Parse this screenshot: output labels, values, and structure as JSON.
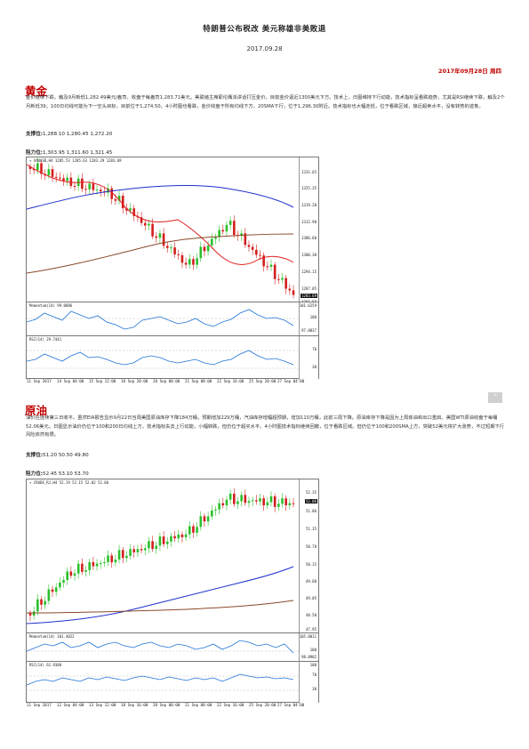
{
  "header": {
    "title": "特朗普公布税改 美元称雄非美败退",
    "date": "2017.09.28",
    "dateline": "2017年09月28日 周四"
  },
  "gold": {
    "heading": "黄金",
    "text": "金价继续下跌，触及9月新低1,282.49美元/盎司，收盘于每盎司1,283.71美元。美联储主席耶伦鹰派讲话打压金价，目前金价逼近1300美元下方。技术上，日图维持下行动能，技术指标呈看跌趋势，尤其是RSI继续下跌，触及2个月新低39；100日均线可能为下一空头目标，目前位于1,274.50。4小时图也看跌，金价收盘于所有均线下方，20SMA下行，位于1,296.30附近。技术指标也大幅走低，位于看跌区域，接近超卖水平，没有转势的迹象。",
    "support_label": "支撑位:",
    "support_values": "1,288.10 1,280.45 1,272.20",
    "resistance_label": "阻力位:",
    "resistance_values": "1,303.95 1,311.60 1,321.45",
    "chart": {
      "symbol_label": "▾ XAUUSD,H4  1285.53 1285.63 1283.29 1283.69",
      "price_tag": "1283.69",
      "y_ticks": [
        "1331.65",
        "1325.35",
        "1319.20",
        "1312.90",
        "1306.60",
        "1300.30",
        "1294.15",
        "1287.85",
        "1281.55"
      ],
      "momentum_label": "Momentum(14) 99.0886",
      "momentum_ticks": [
        "101.6259",
        "100",
        "97.8837"
      ],
      "rsi_label": "RSI(14) 29.7441",
      "rsi_ticks": [
        "70",
        "30"
      ],
      "x_ticks": [
        "11 Sep 2017",
        "14 Sep 04:00",
        "15 Sep 12:00",
        "18 Sep 20:00",
        "20 Sep 00:00",
        "21 Sep 08:00",
        "22 Sep 16:00",
        "25 Sep 20:00",
        "27 Sep 04:00"
      ]
    }
  },
  "oil": {
    "heading": "原油",
    "text": "油价在连续第三日收平。虽然EIA报告显示9月22日当周美国原油库存下降184万桶，预期增加229万桶，汽油库存增幅超预期，增加110万桶，此前三周下降。原油库存下降是因为上周炼油和出口重启。美国WTI原油收盘于每桶52.06美元。日图显示油价仍位于100和200日均线上方，技术指标失去上行动能，小幅转跌，但仍位于超买水平。4小时图技术指标继续回撤，位于看跌区域。但仍位于100和200SMA上方，突破52美元将扩大涨势，不过短期下行风险依然有限。",
    "support_label": "支撑位:",
    "support_values": "51.20 50.50 49.80",
    "resistance_label": "阻力位:",
    "resistance_values": "52.45 53.10 53.70",
    "chart": {
      "symbol_label": "▾ CRUDE_RJ,H4  52.19 52.15 52.02 52.06",
      "price_tag": "52.06",
      "y_ticks": [
        "52.35",
        "51.86",
        "51.35",
        "50.78",
        "50.15",
        "49.60",
        "49.05",
        "48.50",
        "47.95"
      ],
      "momentum_label": "Momentum(14) 101.4022",
      "momentum_ticks": [
        "105.0011",
        "100",
        "98.8902"
      ],
      "rsi_label": "RSI(14) 61.9388",
      "rsi_ticks": [
        "100",
        "70",
        "30"
      ],
      "x_ticks": [
        "11 Sep 2017",
        "12 Sep 04:00",
        "13 Sep 12:00",
        "18 Sep 16:00",
        "20 Sep 00:00",
        "21 Sep 08:00",
        "22 Sep 16:00",
        "25 Sep 20:00",
        "27 Sep 04:00"
      ]
    }
  },
  "colors": {
    "accent_red": "#c00000",
    "bull_candle": "#2bbf2b",
    "bear_candle": "#d41e1e",
    "sma_blue": "#1d2ecc",
    "sma_red": "#e02020",
    "sma_brown": "#8a4a2a",
    "indicator_blue": "#1e73d6"
  },
  "icons": {
    "scroll_top": "chevron-up-icon"
  }
}
